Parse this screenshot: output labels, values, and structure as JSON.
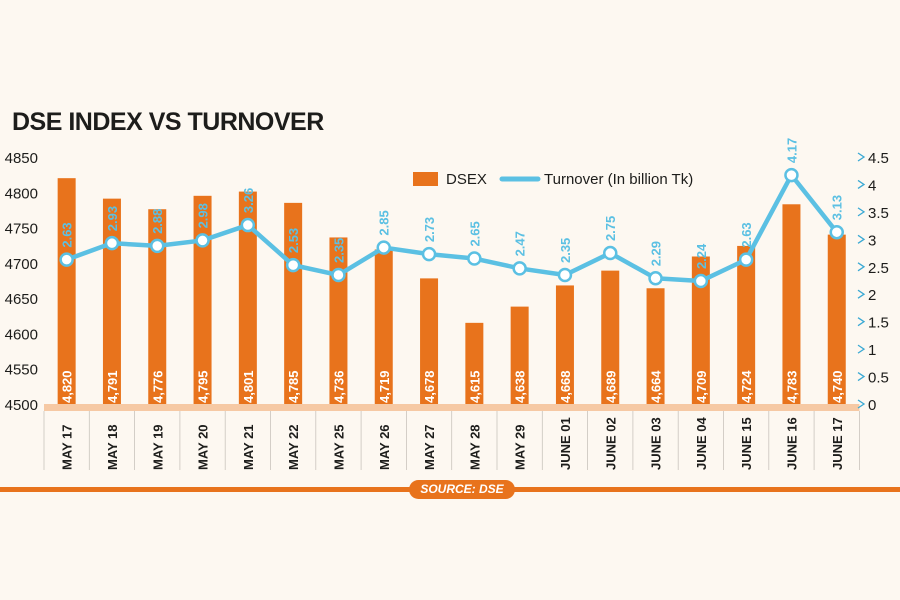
{
  "chart_data": {
    "type": "bar+line",
    "title": "DSE INDEX VS TURNOVER",
    "categories": [
      "MAY 17",
      "MAY 18",
      "MAY 19",
      "MAY 20",
      "MAY 21",
      "MAY 22",
      "MAY 25",
      "MAY 26",
      "MAY 27",
      "MAY 28",
      "MAY 29",
      "JUNE 01",
      "JUNE 02",
      "JUNE 03",
      "JUNE 04",
      "JUNE 15",
      "JUNE 16",
      "JUNE 17"
    ],
    "series": [
      {
        "name": "DSEX",
        "type": "bar",
        "axis": "left",
        "values": [
          4820,
          4791,
          4776,
          4795,
          4801,
          4785,
          4736,
          4719,
          4678,
          4615,
          4638,
          4668,
          4689,
          4664,
          4709,
          4724,
          4783,
          4740
        ],
        "labels": [
          "4,820",
          "4,791",
          "4,776",
          "4,795",
          "4,801",
          "4,785",
          "4,736",
          "4,719",
          "4,678",
          "4,615",
          "4,638",
          "4,668",
          "4,689",
          "4,664",
          "4,709",
          "4,724",
          "4,783",
          "4,740"
        ]
      },
      {
        "name": "Turnover (In billion Tk)",
        "type": "line",
        "axis": "right",
        "values": [
          2.63,
          2.93,
          2.88,
          2.98,
          3.26,
          2.53,
          2.35,
          2.85,
          2.73,
          2.65,
          2.47,
          2.35,
          2.75,
          2.29,
          2.24,
          2.63,
          4.17,
          3.13
        ],
        "labels": [
          "2.63",
          "2.93",
          "2.88",
          "2.98",
          "3.26",
          "2.53",
          "2.35",
          "2.85",
          "2.73",
          "2.65",
          "2.47",
          "2.35",
          "2.75",
          "2.29",
          "2.24",
          "2.63",
          "4.17",
          "3.13"
        ]
      }
    ],
    "y_left": {
      "range": [
        4500,
        4850
      ],
      "ticks": [
        "4850",
        "4800",
        "4750",
        "4700",
        "4650",
        "4600",
        "4550",
        "4500"
      ]
    },
    "y_right": {
      "range": [
        0,
        4.5
      ],
      "ticks": [
        "4.5",
        "4",
        "3.5",
        "3",
        "2.5",
        "2",
        "1.5",
        "1",
        "0.5",
        "0"
      ]
    },
    "legend": {
      "position": "top-right",
      "entries": [
        "DSEX",
        "Turnover (In billion Tk)"
      ]
    },
    "colors": {
      "bar": "#e8731c",
      "line": "#5bc0e3",
      "baseline": "#f6c9a4",
      "axis_text": "#1d1d1b",
      "right_tick": "#3aa9d4"
    }
  },
  "source": "SOURCE: DSE"
}
